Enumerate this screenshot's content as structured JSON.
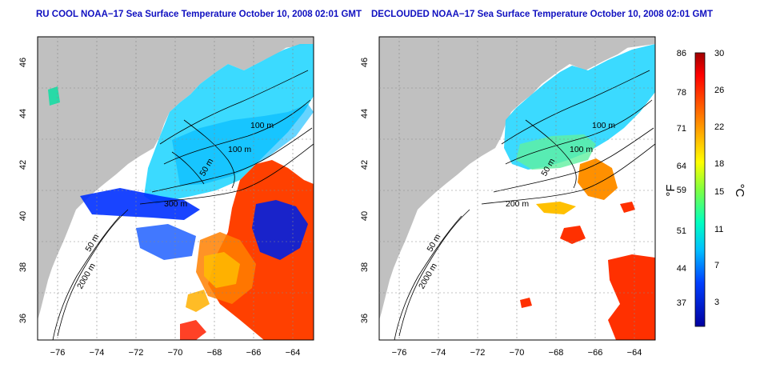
{
  "maps": [
    {
      "id": "left",
      "title": "RU COOL NOAA−17 Sea Surface Temperature October 10, 2008 02:01 GMT",
      "contour_labels": [
        "100 m",
        "100 m",
        "50 m",
        "300 m",
        "50 m",
        "2000 m"
      ]
    },
    {
      "id": "right",
      "title": "DECLOUDED NOAA−17 Sea Surface Temperature October 10, 2008 02:01 GMT",
      "contour_labels": [
        "100 m",
        "100 m",
        "50 m",
        "200 m",
        "50 m",
        "2000 m"
      ]
    }
  ],
  "axes": {
    "lat_ticks": [
      "36",
      "38",
      "40",
      "42",
      "44",
      "46"
    ],
    "lon_ticks": [
      "−76",
      "−74",
      "−72",
      "−70",
      "−68",
      "−66",
      "−64"
    ]
  },
  "colorbar": {
    "fahrenheit_ticks": [
      "86",
      "78",
      "71",
      "64",
      "59",
      "51",
      "44",
      "37"
    ],
    "celsius_ticks": [
      "30",
      "26",
      "22",
      "18",
      "15",
      "11",
      "7",
      "3"
    ],
    "fahrenheit_unit": "°F",
    "celsius_unit": "°C",
    "colors": [
      "#ff0000",
      "#ff6000",
      "#ffb000",
      "#ffff00",
      "#80ff40",
      "#00ffc0",
      "#00c0ff",
      "#0040ff",
      "#0000a0"
    ]
  }
}
